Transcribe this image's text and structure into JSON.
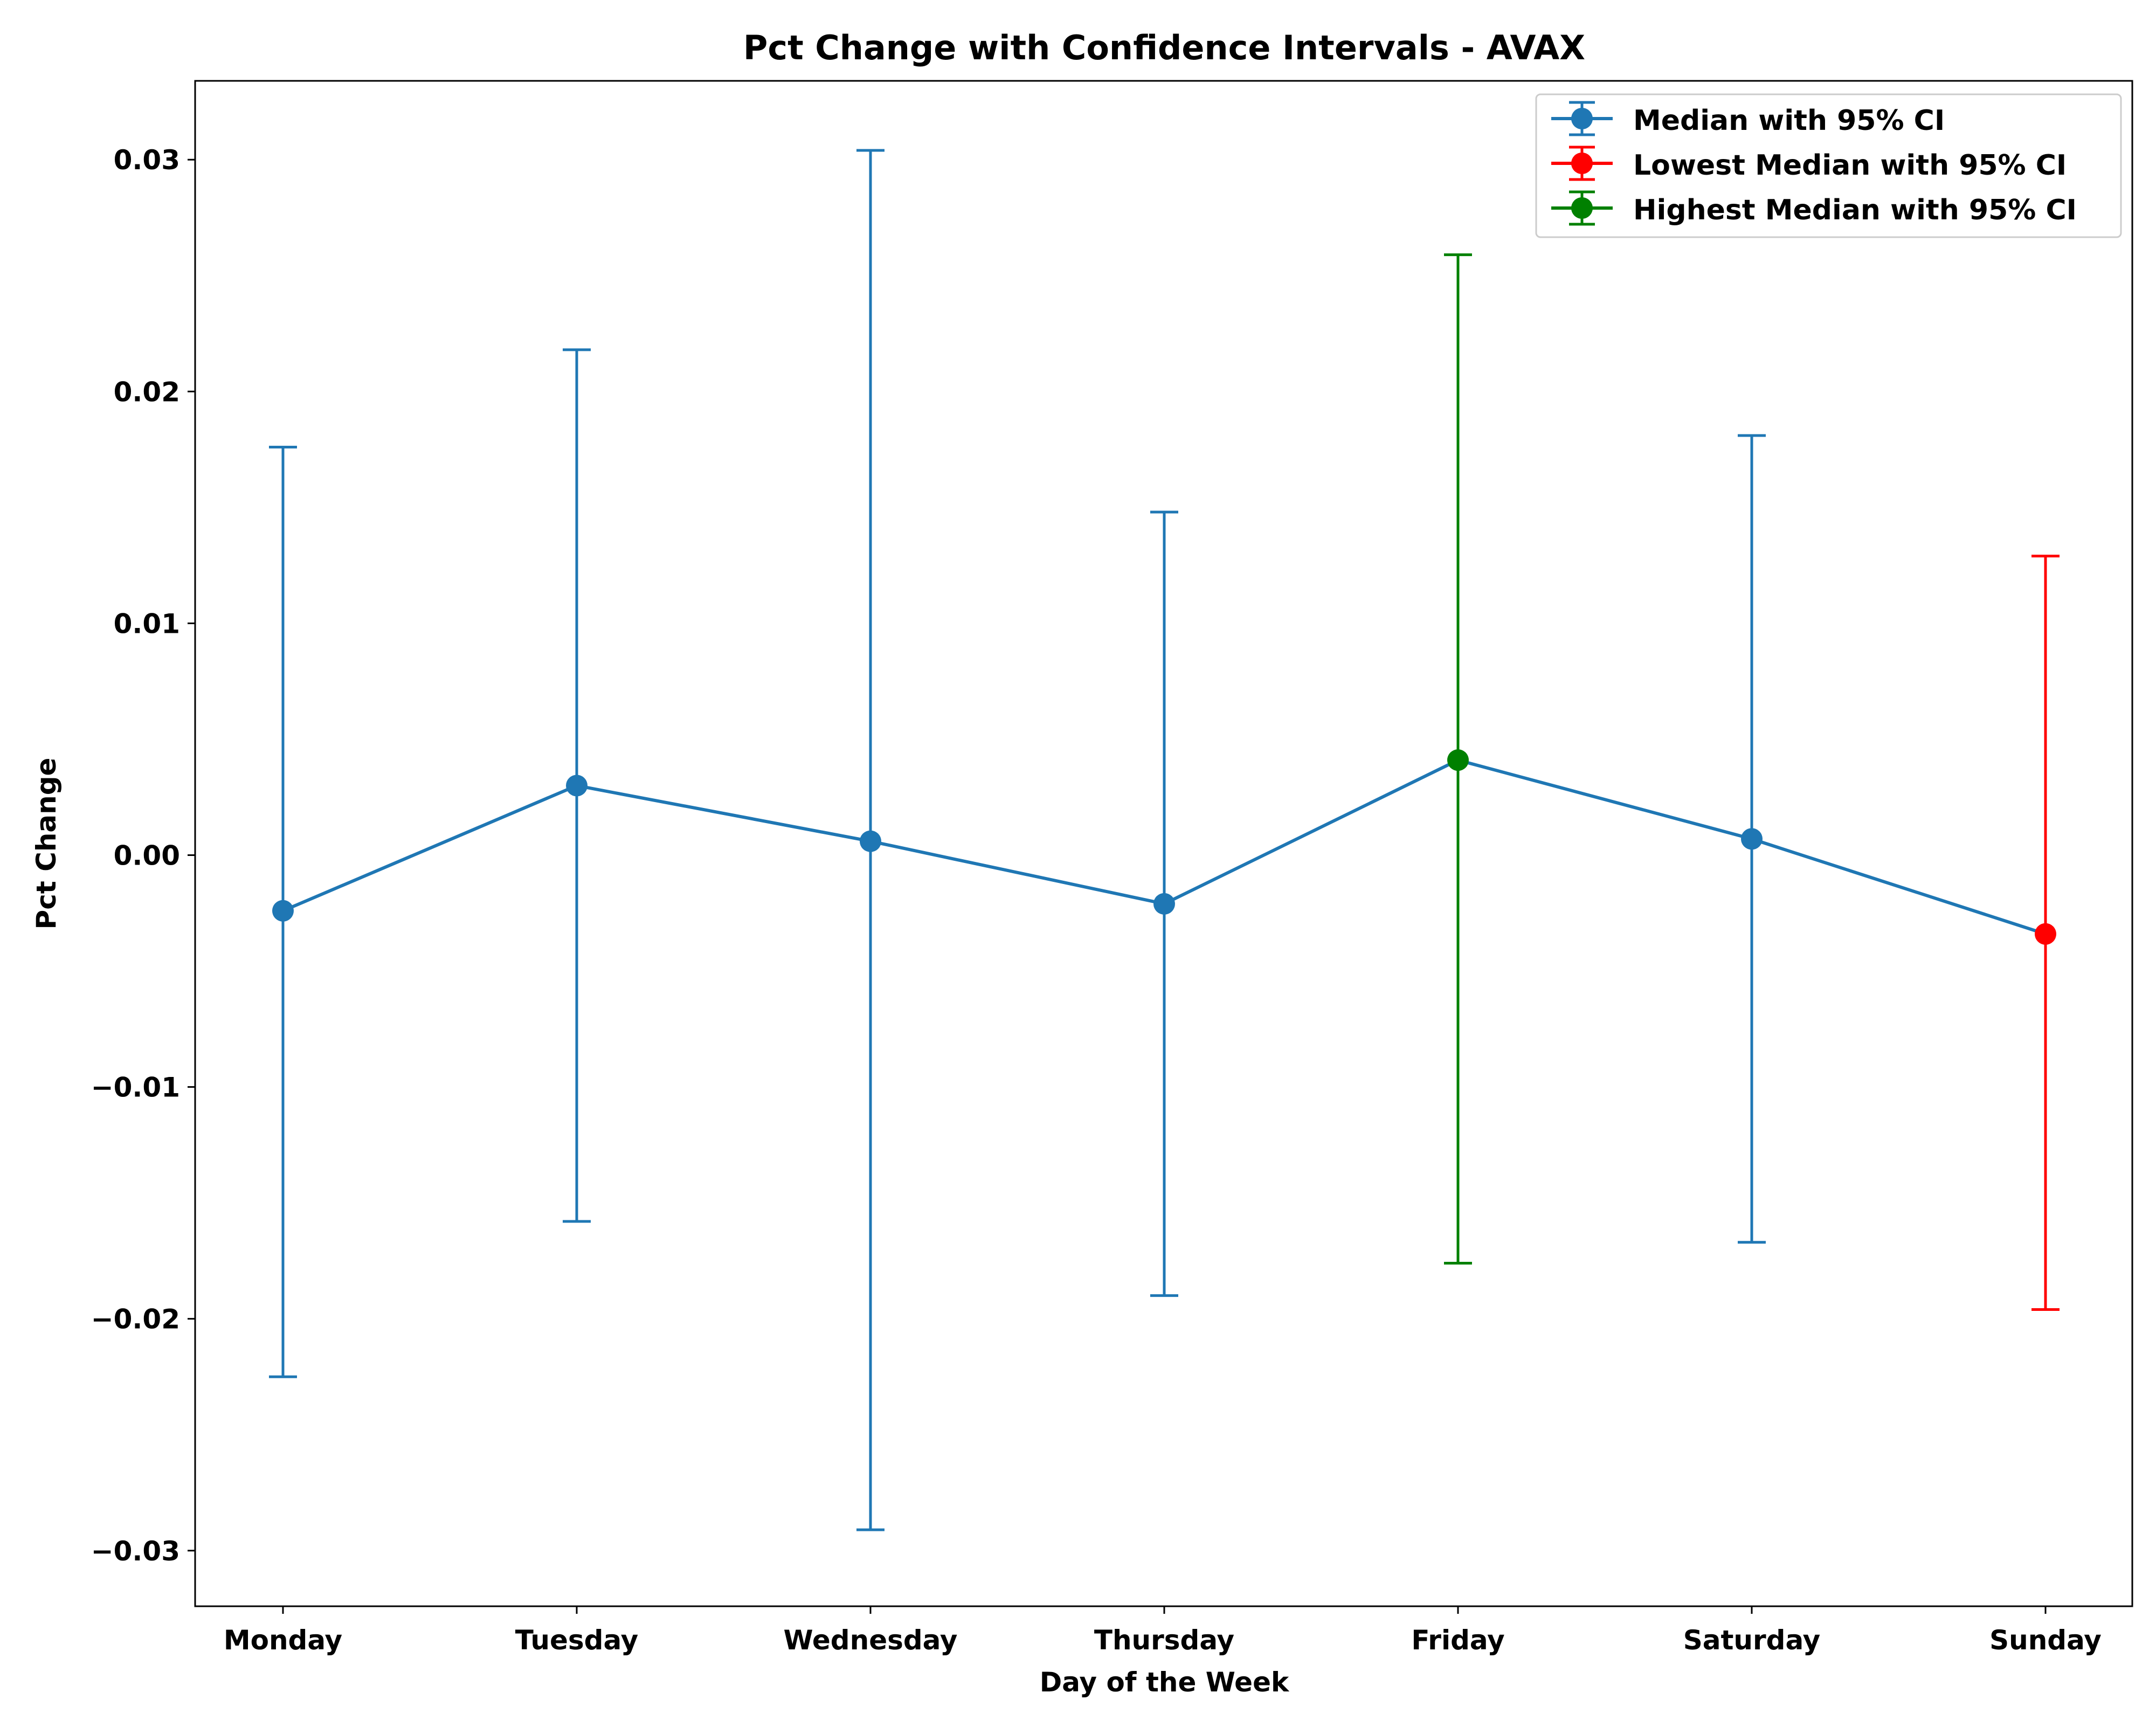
{
  "chart_data": {
    "type": "line",
    "title": "Pct Change with Confidence Intervals - AVAX",
    "xlabel": "Day of the Week",
    "ylabel": "Pct Change",
    "categories": [
      "Monday",
      "Tuesday",
      "Wednesday",
      "Thursday",
      "Friday",
      "Saturday",
      "Sunday"
    ],
    "ylim": [
      -0.0324,
      0.0334
    ],
    "yticks": [
      -0.03,
      -0.02,
      -0.01,
      0.0,
      0.01,
      0.02,
      0.03
    ],
    "ytick_labels": [
      "−0.03",
      "−0.02",
      "−0.01",
      "0.00",
      "0.01",
      "0.02",
      "0.03"
    ],
    "grid": false,
    "legend_position": "top-right",
    "series": [
      {
        "name": "Median with 95% CI",
        "color": "#1f77b4",
        "median": [
          -0.0024,
          0.003,
          0.0006,
          -0.0021,
          0.0041,
          0.0007,
          -0.0034
        ],
        "ci_lower": [
          -0.0225,
          -0.0158,
          -0.0291,
          -0.019,
          -0.0176,
          -0.0167,
          -0.0196
        ],
        "ci_upper": [
          0.0176,
          0.0218,
          0.0304,
          0.0148,
          0.0259,
          0.0181,
          0.0129
        ]
      },
      {
        "name": "Lowest Median with 95% CI",
        "color": "#ff0000",
        "category": "Sunday",
        "median": -0.0034,
        "ci_lower": -0.0196,
        "ci_upper": 0.0129
      },
      {
        "name": "Highest Median with 95% CI",
        "color": "#008000",
        "category": "Friday",
        "median": 0.0041,
        "ci_lower": -0.0176,
        "ci_upper": 0.0259
      }
    ]
  }
}
